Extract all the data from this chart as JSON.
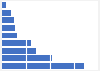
{
  "values": [
    85,
    52,
    35,
    30,
    16,
    14,
    12,
    9,
    4
  ],
  "bar_color": "#4472c4",
  "background_color": "#f2f2f2",
  "plot_bg_color": "#ffffff",
  "grid_color": "#ffffff",
  "xlim": [
    0,
    100
  ]
}
